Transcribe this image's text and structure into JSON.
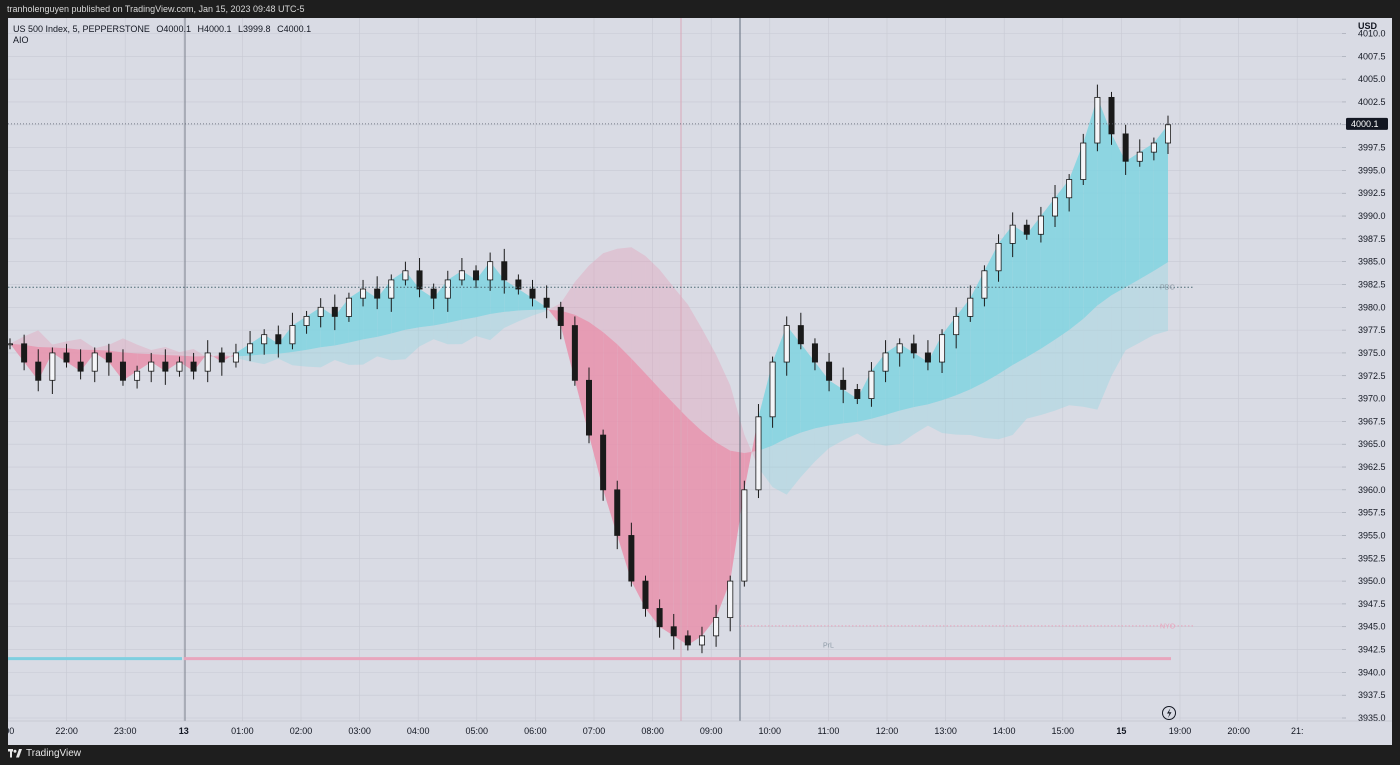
{
  "header": {
    "publish_line": "tranholenguyen published on TradingView.com, Jan 15, 2023 09:48 UTC-5"
  },
  "legend": {
    "symbol_line": "US 500 Index, 5, PEPPERSTONE",
    "open": "O4000.1",
    "high": "H4000.1",
    "low": "L3999.8",
    "close": "C4000.1",
    "indicator": "AIO"
  },
  "footer": {
    "brand": "TradingView"
  },
  "colors": {
    "background": "#d9dbe4",
    "grid": "#c8cad3",
    "bull_cloud": "#7fd3e0",
    "bear_cloud": "#e890ab",
    "candle": "#1a1a1a",
    "price_label_bg": "#131722",
    "level_pink": "#e8a6bd",
    "level_blue": "#7ecfe0"
  },
  "chart_data": {
    "type": "candlestick",
    "currency": "USD",
    "last_price": "4000.1",
    "y_ticks": [
      "4010.0",
      "4007.5",
      "4005.0",
      "4002.5",
      "4000.0",
      "3997.5",
      "3995.0",
      "3992.5",
      "3990.0",
      "3987.5",
      "3985.0",
      "3982.5",
      "3980.0",
      "3977.5",
      "3975.0",
      "3972.5",
      "3970.0",
      "3967.5",
      "3965.0",
      "3962.5",
      "3960.0",
      "3957.5",
      "3955.0",
      "3952.5",
      "3950.0",
      "3947.5",
      "3945.0",
      "3942.5",
      "3940.0",
      "3937.5",
      "3935.0"
    ],
    "ylim": [
      3935,
      4010
    ],
    "x_ticks": [
      ":00",
      "22:00",
      "23:00",
      "13",
      "01:00",
      "02:00",
      "03:00",
      "04:00",
      "05:00",
      "06:00",
      "07:00",
      "08:00",
      "09:00",
      "10:00",
      "11:00",
      "12:00",
      "13:00",
      "14:00",
      "15:00",
      "15",
      "19:00",
      "20:00",
      "21:"
    ],
    "levels": [
      {
        "label": "PDC",
        "value": 3982.2,
        "style": "dotted"
      },
      {
        "label": "NYO",
        "value": 3945.1,
        "style": "dotted"
      },
      {
        "label": "PrL",
        "value": 3941.5,
        "style": "solid"
      },
      {
        "label": "",
        "value": 4000.1,
        "style": "dotted-last"
      }
    ],
    "close_series": [
      3976,
      3974,
      3972,
      3975,
      3974,
      3973,
      3975,
      3974,
      3972,
      3973,
      3974,
      3973,
      3974,
      3973,
      3975,
      3974,
      3975,
      3976,
      3977,
      3976,
      3978,
      3979,
      3980,
      3979,
      3981,
      3982,
      3981,
      3983,
      3984,
      3982,
      3981,
      3983,
      3984,
      3983,
      3985,
      3983,
      3982,
      3981,
      3980,
      3978,
      3972,
      3966,
      3960,
      3955,
      3950,
      3947,
      3945,
      3944,
      3943,
      3944,
      3946,
      3950,
      3960,
      3968,
      3974,
      3978,
      3976,
      3974,
      3972,
      3971,
      3970,
      3973,
      3975,
      3976,
      3975,
      3974,
      3977,
      3979,
      3981,
      3984,
      3987,
      3989,
      3988,
      3990,
      3992,
      3994,
      3998,
      4003,
      3999,
      3996,
      3997,
      3998,
      4000
    ],
    "session_lines": [
      "13",
      "08:30",
      "09:30"
    ]
  }
}
